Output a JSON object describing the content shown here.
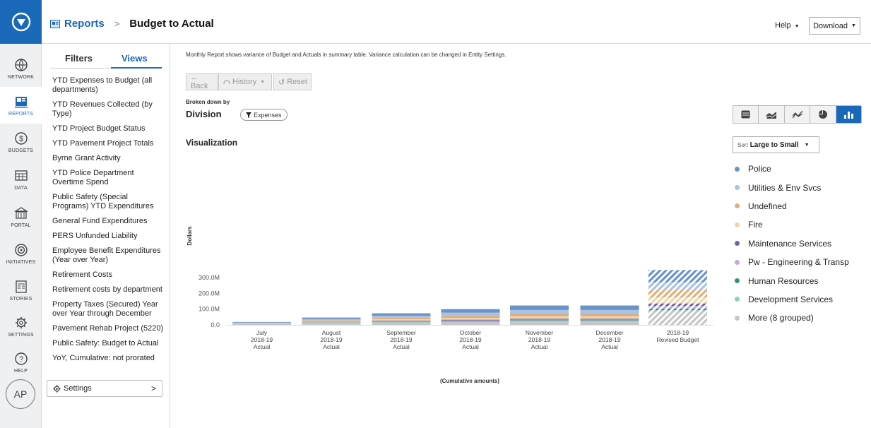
{
  "app": {
    "nav": [
      {
        "label": "NETWORK",
        "icon": "globe-icon"
      },
      {
        "label": "REPORTS",
        "icon": "report-icon",
        "active": true
      },
      {
        "label": "BUDGETS",
        "icon": "dollar-icon"
      },
      {
        "label": "DATA",
        "icon": "data-grid-icon"
      },
      {
        "label": "PORTAL",
        "icon": "building-icon"
      },
      {
        "label": "INITIATIVES",
        "icon": "target-icon"
      },
      {
        "label": "STORIES",
        "icon": "stories-icon"
      },
      {
        "label": "SETTINGS",
        "icon": "gear-icon"
      },
      {
        "label": "HELP",
        "icon": "question-icon"
      }
    ],
    "avatar": "AP"
  },
  "header": {
    "breadcrumb_root": "Reports",
    "breadcrumb_sep": ">",
    "title": "Budget to Actual",
    "help_label": "Help",
    "download_label": "Download"
  },
  "panel": {
    "tab_filters": "Filters",
    "tab_views": "Views",
    "views": [
      "YTD Expenses to Budget (all departments)",
      "YTD Revenues Collected (by Type)",
      "YTD Project Budget Status",
      "YTD Pavement Project Totals",
      "Byrne Grant Activity",
      "YTD Police Department Overtime Spend",
      "Public Safety (Special Programs) YTD Expenditures",
      "General Fund Expenditures",
      "PERS Unfunded Liability",
      "Employee Benefit Expenditures (Year over Year)",
      "Retirement Costs",
      "Retirement costs by department",
      "Property Taxes (Secured) Year over Year through December",
      "Pavement Rehab Project (5220)",
      "Public Safety: Budget to Actual",
      "YoY, Cumulative: not prorated"
    ],
    "settings_label": "Settings",
    "settings_chevron": ">"
  },
  "main": {
    "description": "Monthly Report shows variance of Budget and Actuals in summary table. Variance calculation can be changed in Entity Settings.",
    "back_label": "← Back",
    "history_label": "History",
    "reset_label": "Reset",
    "broken_down_label": "Broken down by",
    "broken_down_value": "Division",
    "filter_pill": "Expenses",
    "viz_title": "Visualization",
    "sort_prefix": "Sort",
    "sort_value": "Large to Small",
    "chart_types": [
      "table-icon",
      "area-chart-icon",
      "line-chart-icon",
      "pie-chart-icon",
      "bar-chart-icon"
    ],
    "active_chart_type": "bar-chart-icon"
  },
  "chart_data": {
    "type": "bar",
    "stacked": true,
    "categories": [
      [
        "July",
        "2018-19",
        "Actual"
      ],
      [
        "August",
        "2018-19",
        "Actual"
      ],
      [
        "September",
        "2018-19",
        "Actual"
      ],
      [
        "October",
        "2018-19",
        "Actual"
      ],
      [
        "November",
        "2018-19",
        "Actual"
      ],
      [
        "December",
        "2018-19",
        "Actual"
      ],
      [
        "2018-19",
        "Revised Budget"
      ]
    ],
    "hatched_categories": [
      6
    ],
    "ylabel": "Dollars",
    "xlabel": "(Cumulative amounts)",
    "ylim": [
      0,
      350000000
    ],
    "yticks": [
      {
        "value": 0,
        "label": "0.0"
      },
      {
        "value": 100000000,
        "label": "100.0M"
      },
      {
        "value": 200000000,
        "label": "200.0M"
      },
      {
        "value": 300000000,
        "label": "300.0M"
      }
    ],
    "legend_position": "right",
    "series": [
      {
        "name": "Police",
        "color": "#6a93c8",
        "values": [
          4.0,
          10.0,
          16.0,
          22.5,
          28.5,
          28.5,
          77.0
        ]
      },
      {
        "name": "Utilities & Env Svcs",
        "color": "#a8c1e6",
        "values": [
          2.0,
          6.0,
          12.0,
          20.0,
          25.0,
          25.0,
          50.0
        ]
      },
      {
        "name": "Undefined",
        "color": "#e2ad78",
        "values": [
          1.5,
          5.0,
          9.0,
          13.0,
          15.0,
          15.0,
          47.0
        ]
      },
      {
        "name": "Fire",
        "color": "#efd6ac",
        "values": [
          1.5,
          5.0,
          9.0,
          11.5,
          15.0,
          15.0,
          38.0
        ]
      },
      {
        "name": "Maintenance Services",
        "color": "#6e63a9",
        "values": [
          1.0,
          2.0,
          3.5,
          4.5,
          5.5,
          5.5,
          17.0
        ]
      },
      {
        "name": "Pw - Engineering & Transp",
        "color": "#c2a9d9",
        "values": [
          1.0,
          2.0,
          3.0,
          4.0,
          4.5,
          4.5,
          16.0
        ]
      },
      {
        "name": "Human Resources",
        "color": "#3a8f7f",
        "values": [
          0.5,
          1.5,
          2.5,
          3.0,
          3.5,
          3.5,
          10.0
        ]
      },
      {
        "name": "Development Services",
        "color": "#8fcfbf",
        "values": [
          1.0,
          2.0,
          3.0,
          3.5,
          4.0,
          4.0,
          10.0
        ]
      },
      {
        "name": "More (8 grouped)",
        "color": "#c6c6c6",
        "values": [
          6.0,
          13.0,
          15.5,
          18.0,
          22.0,
          22.0,
          83.0
        ]
      }
    ],
    "value_unit": "millions of dollars"
  }
}
